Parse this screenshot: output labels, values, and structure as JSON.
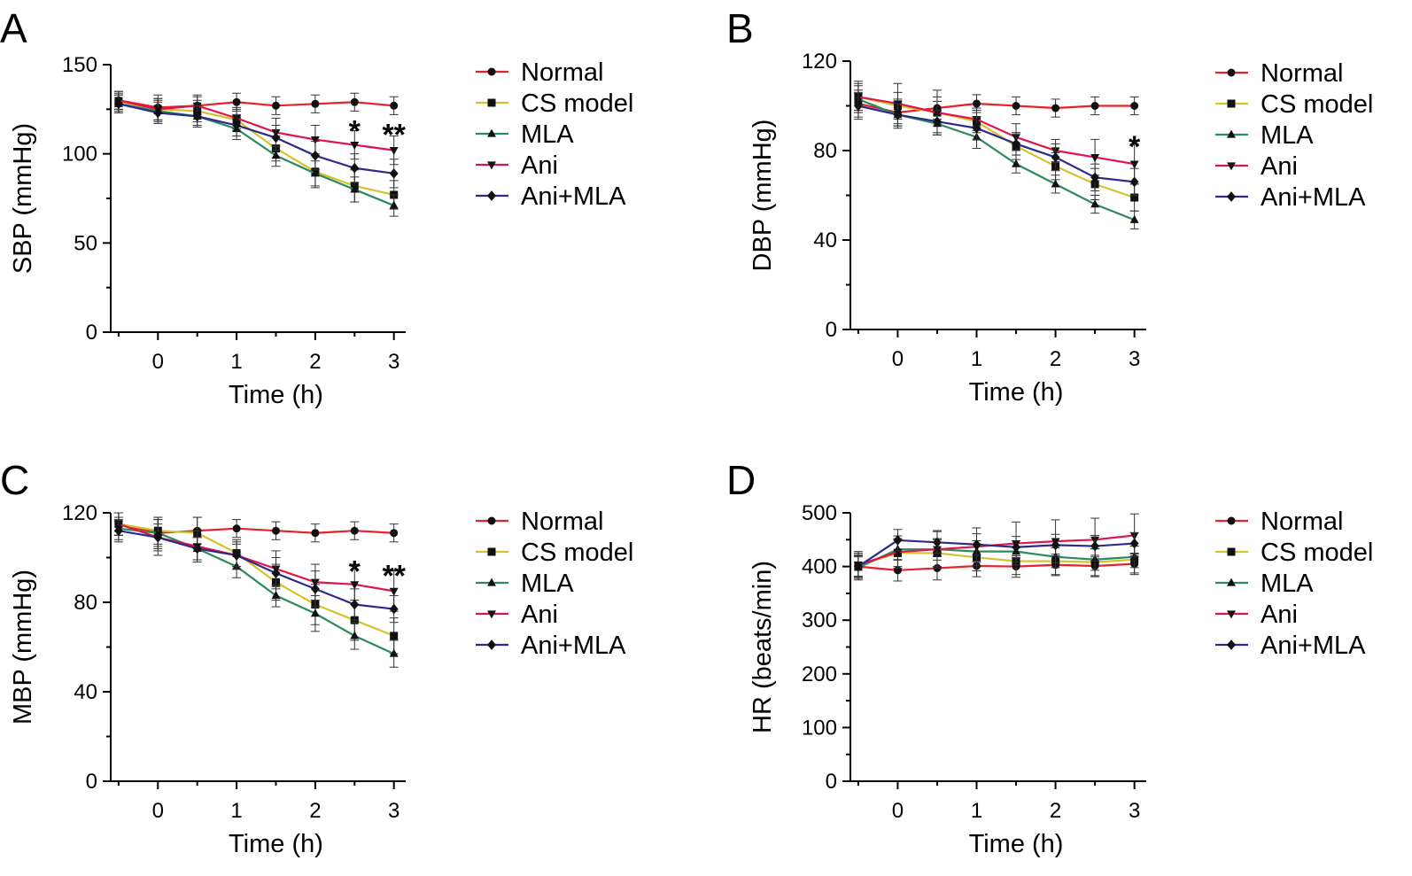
{
  "chart_data": [
    {
      "type": "line",
      "panel_label": "A",
      "xlabel": "Time (h)",
      "ylabel": "SBP (mmHg)",
      "ylim": [
        0,
        150
      ],
      "yticks": [
        "0",
        "50",
        "100",
        "150"
      ],
      "xlim": [
        -0.6,
        3.15
      ],
      "xticks": [
        "0",
        "1",
        "2",
        "3"
      ],
      "x": [
        -0.5,
        0,
        0.5,
        1,
        1.5,
        2,
        2.5,
        3
      ],
      "series": [
        {
          "name": "Normal",
          "color": "#e8202a",
          "marker": "circle",
          "values": [
            130,
            126,
            127,
            129,
            127,
            128,
            129,
            127
          ],
          "errors": [
            5,
            7,
            5,
            5,
            5,
            5,
            5,
            5
          ]
        },
        {
          "name": "CS model",
          "color": "#d4c22a",
          "marker": "square",
          "values": [
            129,
            125,
            124,
            119,
            103,
            90,
            82,
            77
          ],
          "errors": [
            5,
            6,
            6,
            6,
            7,
            9,
            9,
            8
          ]
        },
        {
          "name": "MLA",
          "color": "#2c8a5c",
          "marker": "triangle-up",
          "values": [
            128,
            124,
            121,
            114,
            99,
            89,
            80,
            71
          ],
          "errors": [
            5,
            6,
            5,
            6,
            6,
            7,
            7,
            6
          ]
        },
        {
          "name": "Ani",
          "color": "#e0144c",
          "marker": "triangle-down",
          "values": [
            130,
            125,
            127,
            120,
            112,
            108,
            105,
            102
          ],
          "errors": [
            5,
            6,
            6,
            6,
            8,
            8,
            8,
            8
          ]
        },
        {
          "name": "Ani+MLA",
          "color": "#2d2a8a",
          "marker": "diamond",
          "values": [
            128,
            123,
            121,
            116,
            109,
            99,
            92,
            89
          ],
          "errors": [
            5,
            6,
            6,
            6,
            7,
            8,
            8,
            8
          ]
        }
      ],
      "annotations": [
        {
          "text": "*",
          "x": 2.5,
          "y": 118
        },
        {
          "text": "**",
          "x": 3,
          "y": 116
        }
      ]
    },
    {
      "type": "line",
      "panel_label": "B",
      "xlabel": "Time (h)",
      "ylabel": "DBP (mmHg)",
      "ylim": [
        0,
        120
      ],
      "yticks": [
        "0",
        "40",
        "80",
        "120"
      ],
      "xlim": [
        -0.6,
        3.15
      ],
      "xticks": [
        "0",
        "1",
        "2",
        "3"
      ],
      "x": [
        -0.5,
        0,
        0.5,
        1,
        1.5,
        2,
        2.5,
        3
      ],
      "series": [
        {
          "name": "Normal",
          "color": "#e8202a",
          "marker": "circle",
          "values": [
            101,
            97,
            99,
            101,
            100,
            99,
            100,
            100
          ],
          "errors": [
            6,
            6,
            5,
            4,
            4,
            4,
            4,
            4
          ]
        },
        {
          "name": "CS model",
          "color": "#d4c22a",
          "marker": "square",
          "values": [
            104,
            100,
            97,
            93,
            82,
            73,
            65,
            59
          ],
          "errors": [
            6,
            6,
            5,
            5,
            6,
            6,
            7,
            6
          ]
        },
        {
          "name": "MLA",
          "color": "#2c8a5c",
          "marker": "triangle-up",
          "values": [
            103,
            96,
            92,
            86,
            74,
            65,
            56,
            49
          ],
          "errors": [
            6,
            6,
            5,
            5,
            4,
            4,
            4,
            4
          ]
        },
        {
          "name": "Ani",
          "color": "#e0144c",
          "marker": "triangle-down",
          "values": [
            104,
            101,
            97,
            94,
            86,
            80,
            77,
            74
          ],
          "errors": [
            7,
            9,
            10,
            5,
            6,
            5,
            8,
            9
          ]
        },
        {
          "name": "Ani+MLA",
          "color": "#2d2a8a",
          "marker": "diamond",
          "values": [
            100,
            96,
            93,
            90,
            83,
            77,
            68,
            66
          ],
          "errors": [
            6,
            5,
            5,
            5,
            5,
            6,
            6,
            6
          ]
        }
      ],
      "annotations": [
        {
          "text": "*",
          "x": 3,
          "y": 86
        }
      ]
    },
    {
      "type": "line",
      "panel_label": "C",
      "xlabel": "Time (h)",
      "ylabel": "MBP (mmHg)",
      "ylim": [
        0,
        120
      ],
      "yticks": [
        "0",
        "40",
        "80",
        "120"
      ],
      "xlim": [
        -0.6,
        3.15
      ],
      "xticks": [
        "0",
        "1",
        "2",
        "3"
      ],
      "x": [
        -0.5,
        0,
        0.5,
        1,
        1.5,
        2,
        2.5,
        3
      ],
      "series": [
        {
          "name": "Normal",
          "color": "#e8202a",
          "marker": "circle",
          "values": [
            115,
            111,
            112,
            113,
            112,
            111,
            112,
            111
          ],
          "errors": [
            5,
            7,
            6,
            4,
            4,
            4,
            4,
            4
          ]
        },
        {
          "name": "CS model",
          "color": "#d4c22a",
          "marker": "square",
          "values": [
            115,
            112,
            111,
            102,
            89,
            79,
            72,
            65
          ],
          "errors": [
            5,
            6,
            7,
            6,
            8,
            9,
            9,
            8
          ]
        },
        {
          "name": "MLA",
          "color": "#2c8a5c",
          "marker": "triangle-up",
          "values": [
            113,
            111,
            104,
            96,
            83,
            75,
            65,
            57
          ],
          "errors": [
            5,
            6,
            5,
            5,
            5,
            8,
            6,
            6
          ]
        },
        {
          "name": "Ani",
          "color": "#e0144c",
          "marker": "triangle-down",
          "values": [
            115,
            109,
            105,
            101,
            95,
            89,
            88,
            85
          ],
          "errors": [
            5,
            8,
            7,
            6,
            8,
            8,
            9,
            9
          ]
        },
        {
          "name": "Ani+MLA",
          "color": "#2d2a8a",
          "marker": "diamond",
          "values": [
            112,
            109,
            104,
            101,
            93,
            86,
            79,
            77
          ],
          "errors": [
            5,
            6,
            5,
            5,
            7,
            8,
            7,
            6
          ]
        }
      ],
      "annotations": [
        {
          "text": "*",
          "x": 2.5,
          "y": 98
        },
        {
          "text": "**",
          "x": 3,
          "y": 96
        }
      ]
    },
    {
      "type": "line",
      "panel_label": "D",
      "xlabel": "Time (h)",
      "ylabel": "HR (beats/min)",
      "ylim": [
        0,
        500
      ],
      "yticks": [
        "0",
        "100",
        "200",
        "300",
        "400",
        "500"
      ],
      "xlim": [
        -0.6,
        3.15
      ],
      "xticks": [
        "0",
        "1",
        "2",
        "3"
      ],
      "x": [
        -0.5,
        0,
        0.5,
        1,
        1.5,
        2,
        2.5,
        3
      ],
      "series": [
        {
          "name": "Normal",
          "color": "#e8202a",
          "marker": "circle",
          "values": [
            400,
            393,
            397,
            401,
            400,
            403,
            401,
            405
          ],
          "errors": [
            20,
            20,
            22,
            20,
            20,
            20,
            20,
            20
          ]
        },
        {
          "name": "CS model",
          "color": "#d4c22a",
          "marker": "square",
          "values": [
            402,
            425,
            425,
            417,
            410,
            410,
            408,
            413
          ],
          "errors": [
            20,
            25,
            25,
            25,
            25,
            25,
            25,
            25
          ]
        },
        {
          "name": "MLA",
          "color": "#2c8a5c",
          "marker": "triangle-up",
          "values": [
            398,
            432,
            432,
            428,
            428,
            418,
            413,
            418
          ],
          "errors": [
            20,
            20,
            20,
            20,
            20,
            20,
            20,
            20
          ]
        },
        {
          "name": "Ani",
          "color": "#e0144c",
          "marker": "triangle-down",
          "values": [
            403,
            427,
            432,
            437,
            443,
            447,
            450,
            458
          ],
          "errors": [
            25,
            30,
            35,
            35,
            40,
            40,
            40,
            40
          ]
        },
        {
          "name": "Ani+MLA",
          "color": "#2d2a8a",
          "marker": "diamond",
          "values": [
            400,
            449,
            445,
            441,
            436,
            440,
            438,
            443
          ],
          "errors": [
            25,
            20,
            20,
            20,
            20,
            20,
            20,
            20
          ]
        }
      ],
      "annotations": []
    }
  ]
}
